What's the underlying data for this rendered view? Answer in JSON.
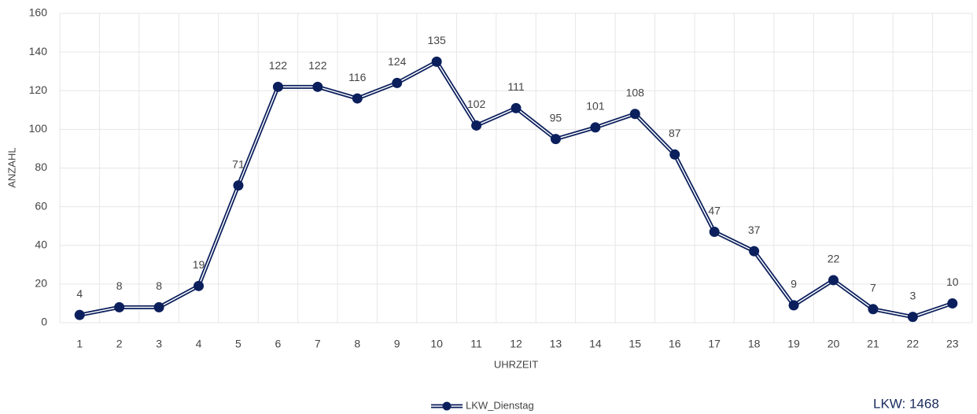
{
  "chart_data": {
    "type": "line",
    "categories": [
      1,
      2,
      3,
      4,
      5,
      6,
      7,
      8,
      9,
      10,
      11,
      12,
      13,
      14,
      15,
      16,
      17,
      18,
      19,
      20,
      21,
      22,
      23
    ],
    "series": [
      {
        "name": "LKW_Dienstag",
        "color": "#0b1f5c",
        "values": [
          4,
          8,
          8,
          19,
          71,
          122,
          122,
          116,
          124,
          135,
          102,
          111,
          95,
          101,
          108,
          87,
          47,
          37,
          9,
          22,
          7,
          3,
          10
        ]
      }
    ],
    "ylim": [
      0,
      160
    ],
    "yticks": [
      0,
      20,
      40,
      60,
      80,
      100,
      120,
      140,
      160
    ],
    "y_label": "ANZAHL",
    "x_label": "UHRZEIT",
    "annotation": "LKW: 1468",
    "grid": true,
    "data_labels": true,
    "legend": "bottom"
  }
}
